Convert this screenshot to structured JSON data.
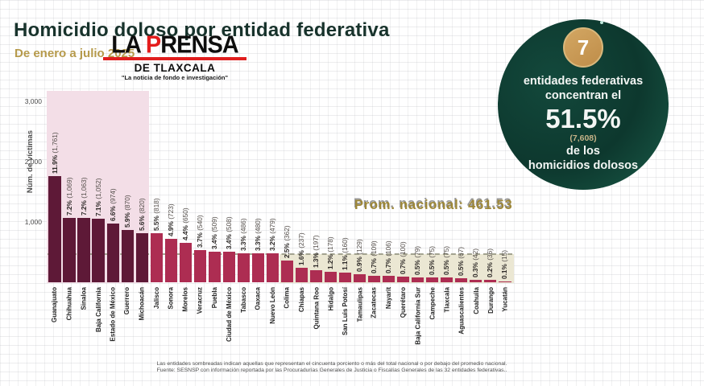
{
  "title": "Homicidio doloso por entidad federativa",
  "subtitle": "De enero a julio 2025",
  "logo": {
    "name_a": "LA ",
    "name_p": "P",
    "name_b": "RENSA",
    "region": "DE TLAXCALA",
    "tagline": "\"La noticia de fondo e investigación\""
  },
  "badge": {
    "number": "7",
    "line1": "entidades federativas",
    "line2": "concentran el",
    "pct": "51.5%",
    "count": "(7,608)",
    "line3": "de los",
    "line4": "homicidios dolosos"
  },
  "chart_data": {
    "type": "bar",
    "ylabel": "Núm. de víctimas",
    "yticks": [
      {
        "label": "3,000",
        "value": 3000
      },
      {
        "label": "2,000",
        "value": 2000
      },
      {
        "label": "1,000",
        "value": 1000
      }
    ],
    "ylim": [
      0,
      3200
    ],
    "grid": false,
    "avg_label": "Prom. nacional: 461.53",
    "avg_value": 461.53,
    "shaded_top_n": 7,
    "below_avg_start_index": 16,
    "categories": [
      "Guanajuato",
      "Chihuahua",
      "Sinaloa",
      "Baja California",
      "Estado de México",
      "Guerrero",
      "Michoacán",
      "Jalisco",
      "Sonora",
      "Morelos",
      "Veracruz",
      "Puebla",
      "Ciudad de México",
      "Tabasco",
      "Oaxaca",
      "Nuevo León",
      "Colima",
      "Chiapas",
      "Quintana Roo",
      "Hidalgo",
      "San Luis Potosí",
      "Tamaulipas",
      "Zacatecas",
      "Nayarit",
      "Querétaro",
      "Baja California Sur",
      "Campeche",
      "Tlaxcala",
      "Aguascalientes",
      "Coahuila",
      "Durango",
      "Yucatán"
    ],
    "values": [
      1761,
      1069,
      1063,
      1052,
      974,
      870,
      820,
      818,
      723,
      650,
      540,
      509,
      508,
      486,
      480,
      479,
      362,
      237,
      197,
      178,
      160,
      129,
      109,
      106,
      100,
      79,
      75,
      75,
      67,
      42,
      36,
      15
    ],
    "pct_labels": [
      "11.9%",
      "7.2%",
      "7.2%",
      "7.1%",
      "6.6%",
      "5.9%",
      "5.6%",
      "5.5%",
      "4.9%",
      "4.4%",
      "3.7%",
      "3.4%",
      "3.4%",
      "3.3%",
      "3.3%",
      "3.2%",
      "2.5%",
      "1.6%",
      "1.3%",
      "1.2%",
      "1.1%",
      "0.9%",
      "0.7%",
      "0.7%",
      "0.7%",
      "0.5%",
      "0.5%",
      "0.5%",
      "0.5%",
      "0.3%",
      "0.2%",
      "0.1%"
    ],
    "count_labels": [
      "(1,761)",
      "(1,069)",
      "(1,063)",
      "(1,052)",
      "(974)",
      "(870)",
      "(820)",
      "(818)",
      "(723)",
      "(650)",
      "(540)",
      "(509)",
      "(508)",
      "(486)",
      "(480)",
      "(479)",
      "(362)",
      "(237)",
      "(197)",
      "(178)",
      "(160)",
      "(129)",
      "(109)",
      "(106)",
      "(100)",
      "(79)",
      "(75)",
      "(75)",
      "(67)",
      "(42)",
      "(36)",
      "(15)"
    ]
  },
  "footer": {
    "line1": "Las entidades sombreadas indican aquellas que representan el cincuenta porciento o más del total nacional o por debajo del promedio nacional.",
    "line2": "Fuente: SESNSP con información reportada por las Procuradurías Generales de Justicia o Fiscalías Generales de las 32 entidades federativas.."
  },
  "colors": {
    "dark_bar": "#5e1937",
    "light_bar": "#ad2d52",
    "top_region": "#f3dee7",
    "below_avg_region": "#ebe7d3",
    "title": "#18332c",
    "gold": "#b69a4b",
    "badge_green": "#0d382e",
    "badge_gold": "#c9995a",
    "logo_red": "#e41c1c"
  }
}
